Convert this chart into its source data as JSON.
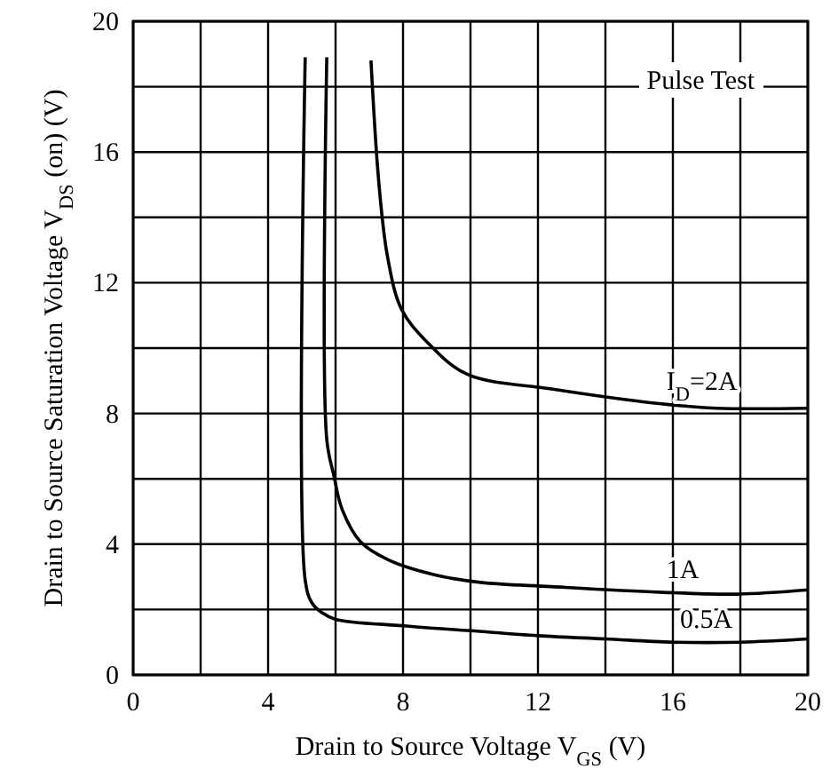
{
  "chart_data": {
    "type": "line",
    "xlabel": "Drain to Source Voltage V$_{GS}$  (V)",
    "ylabel": "Drain to Source Saturation Voltage V$_{DS}$ (on)  (V)",
    "xlim": [
      0,
      20
    ],
    "ylim": [
      0,
      20
    ],
    "xticks": [
      0,
      {
        "value": 2,
        "label": null
      },
      4,
      {
        "value": 6,
        "label": null
      },
      8,
      {
        "value": 10,
        "label": null
      },
      12,
      {
        "value": 14,
        "label": null
      },
      16,
      {
        "value": 18,
        "label": null
      },
      20
    ],
    "yticks": [
      0,
      {
        "value": 2,
        "label": null
      },
      4,
      {
        "value": 6,
        "label": null
      },
      8,
      {
        "value": 10,
        "label": null
      },
      12,
      {
        "value": 14,
        "label": null
      },
      16,
      {
        "value": 18,
        "label": null
      },
      20
    ],
    "grid": true,
    "marker": "none",
    "line_style": "solid",
    "annotations": [
      "Pulse Test"
    ],
    "series": [
      {
        "name": "I$_{D}$=2A",
        "color": "#000000",
        "x": [
          7.05,
          7.28,
          7.54,
          7.95,
          8.7,
          9.9,
          12.4,
          15.6,
          17.3,
          20
        ],
        "values": [
          18.8,
          15.1,
          12.8,
          11.2,
          10.2,
          9.2,
          8.75,
          8.3,
          8.16,
          8.16
        ]
      },
      {
        "name": "1A",
        "color": "#000000",
        "x": [
          5.74,
          5.74,
          5.95,
          6.2,
          6.75,
          7.6,
          8.9,
          10.3,
          12.4,
          15.6,
          17.9,
          20
        ],
        "values": [
          18.9,
          7.2,
          6.1,
          5.05,
          4.06,
          3.5,
          3.07,
          2.83,
          2.7,
          2.53,
          2.47,
          2.6
        ]
      },
      {
        "name": "0.5A",
        "color": "#000000",
        "x": [
          5.1,
          5.1,
          5.3,
          5.6,
          6.0,
          8,
          10,
          12,
          14,
          16,
          18,
          20
        ],
        "values": [
          18.9,
          2.9,
          2.2,
          1.9,
          1.7,
          1.5,
          1.35,
          1.2,
          1.1,
          1.0,
          1.0,
          1.1
        ]
      }
    ]
  }
}
